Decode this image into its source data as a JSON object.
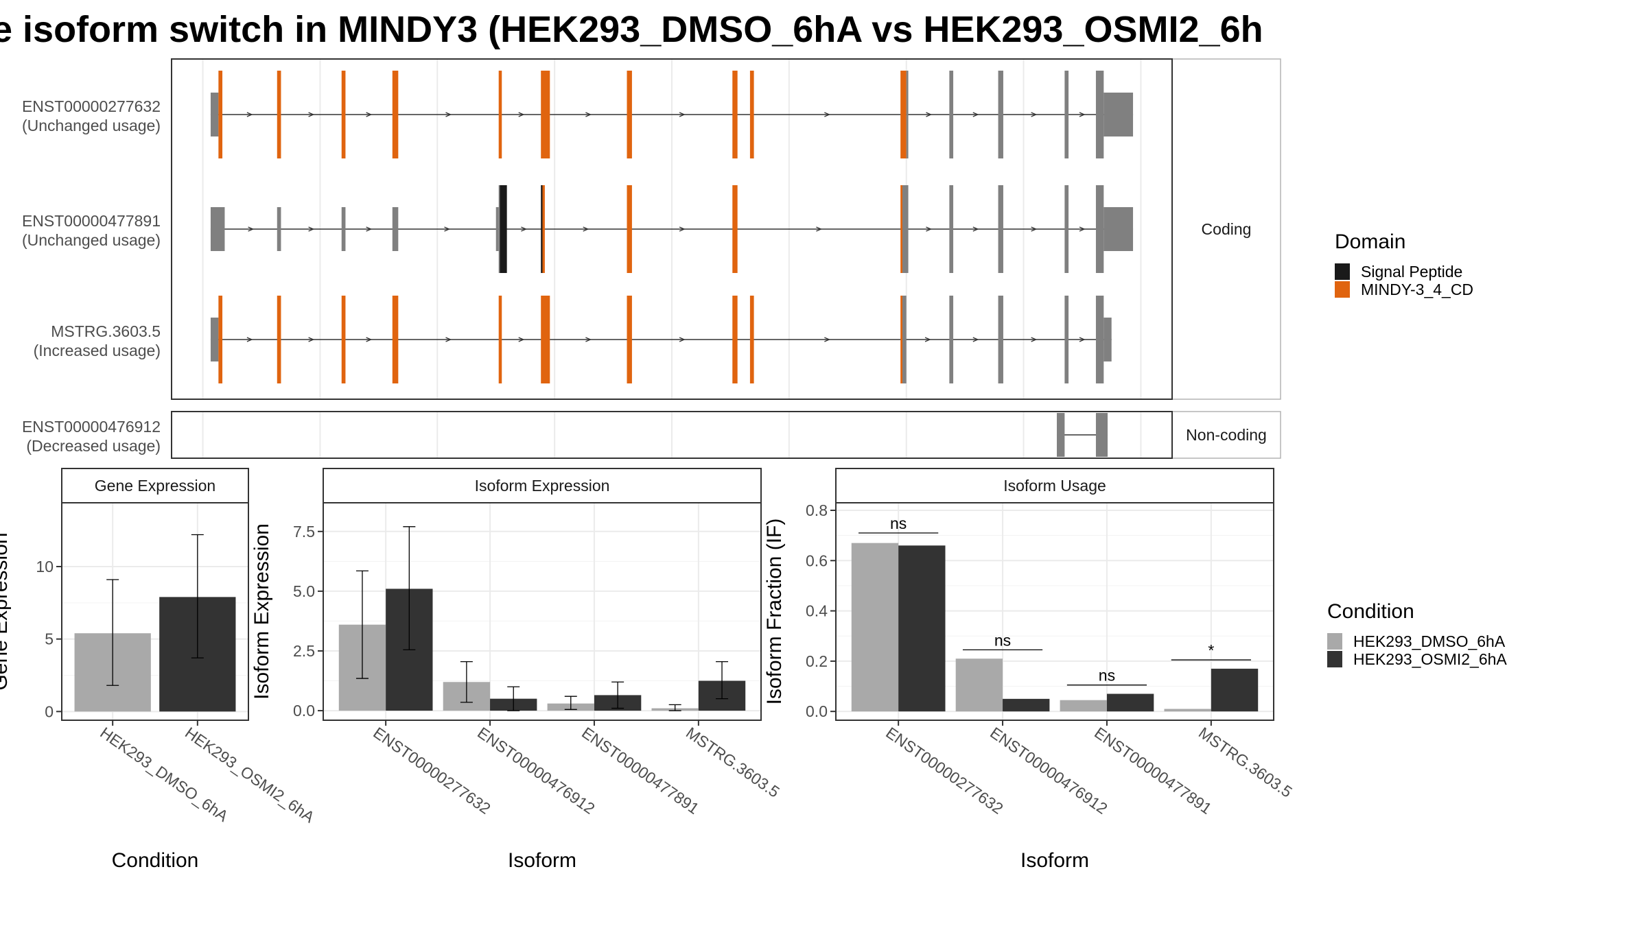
{
  "title": "e isoform switch in MINDY3 (HEK293_DMSO_6hA vs HEK293_OSMI2_6h",
  "colors": {
    "exon": "#808080",
    "domain_core": "#e0640f",
    "signal_peptide": "#1a1a1a",
    "dmso": "#a9a9a9",
    "osmi2": "#333333",
    "panel_border": "#333333",
    "strip_border": "#b3b3b3",
    "grid": "#ebebeb"
  },
  "transcript_plot": {
    "facets": [
      "Coding",
      "Non-coding"
    ],
    "transcripts": [
      {
        "id": "ENST00000277632",
        "label_line1": "ENST00000277632",
        "label_line2": "(Unchanged usage)",
        "facet": "Coding",
        "exons": [
          [
            200,
            400,
            "utr"
          ],
          [
            400,
            500,
            "core"
          ],
          [
            1900,
            2000,
            "core"
          ],
          [
            3550,
            3650,
            "core"
          ],
          [
            4850,
            5000,
            "core"
          ],
          [
            7570,
            7650,
            "core"
          ],
          [
            8650,
            8880,
            "core"
          ],
          [
            10850,
            10980,
            "core"
          ],
          [
            13550,
            13680,
            "core"
          ],
          [
            14000,
            14100,
            "core"
          ],
          [
            17850,
            18000,
            "core"
          ],
          [
            18000,
            18050,
            "cds"
          ],
          [
            19100,
            19200,
            "cds"
          ],
          [
            20350,
            20480,
            "cds"
          ],
          [
            22050,
            22150,
            "cds"
          ],
          [
            22850,
            23050,
            "cds"
          ],
          [
            23050,
            23800,
            "utr"
          ]
        ]
      },
      {
        "id": "ENST00000477891",
        "label_line1": "ENST00000477891",
        "label_line2": "(Unchanged usage)",
        "facet": "Coding",
        "exons": [
          [
            200,
            560,
            "utr"
          ],
          [
            1900,
            2000,
            "utr"
          ],
          [
            3550,
            3650,
            "utr"
          ],
          [
            4850,
            5000,
            "utr"
          ],
          [
            7500,
            7570,
            "utr"
          ],
          [
            7570,
            7600,
            "cds"
          ],
          [
            7600,
            7780,
            "signal"
          ],
          [
            8650,
            8690,
            "signal"
          ],
          [
            8690,
            8750,
            "core"
          ],
          [
            10850,
            10980,
            "core"
          ],
          [
            13550,
            13680,
            "core"
          ],
          [
            17850,
            17900,
            "core"
          ],
          [
            17900,
            18050,
            "cds"
          ],
          [
            19100,
            19200,
            "cds"
          ],
          [
            20350,
            20480,
            "cds"
          ],
          [
            22050,
            22150,
            "cds"
          ],
          [
            22850,
            23050,
            "cds"
          ],
          [
            23050,
            23800,
            "utr"
          ]
        ]
      },
      {
        "id": "MSTRG.3603.5",
        "label_line1": "MSTRG.3603.5",
        "label_line2": "(Increased usage)",
        "facet": "Coding",
        "exons": [
          [
            200,
            400,
            "utr"
          ],
          [
            400,
            500,
            "core"
          ],
          [
            1900,
            2000,
            "core"
          ],
          [
            3550,
            3650,
            "core"
          ],
          [
            4850,
            5000,
            "core"
          ],
          [
            7570,
            7650,
            "core"
          ],
          [
            8650,
            8880,
            "core"
          ],
          [
            10850,
            10980,
            "core"
          ],
          [
            13550,
            13680,
            "core"
          ],
          [
            14000,
            14100,
            "core"
          ],
          [
            17850,
            17900,
            "core"
          ],
          [
            17900,
            18000,
            "cds"
          ],
          [
            19100,
            19200,
            "cds"
          ],
          [
            20350,
            20480,
            "cds"
          ],
          [
            22050,
            22150,
            "cds"
          ],
          [
            22850,
            23050,
            "cds"
          ],
          [
            23050,
            23250,
            "utr"
          ]
        ]
      },
      {
        "id": "ENST00000476912",
        "label_line1": "ENST00000476912",
        "label_line2": "(Decreased usage)",
        "facet": "Non-coding",
        "exons": [
          [
            21850,
            22050,
            "nc"
          ],
          [
            22850,
            23150,
            "nc"
          ]
        ]
      }
    ],
    "x_range": [
      -800,
      24800
    ],
    "x_grid": [
      0,
      3000,
      6000,
      9000,
      12000,
      15000,
      18000,
      21000,
      24000
    ]
  },
  "legend_domain": {
    "title": "Domain",
    "items": [
      {
        "label": "Signal Peptide",
        "color": "#1a1a1a"
      },
      {
        "label": "MINDY-3_4_CD",
        "color": "#e0640f"
      }
    ]
  },
  "legend_condition": {
    "title": "Condition",
    "items": [
      {
        "label": "HEK293_DMSO_6hA",
        "color": "#a9a9a9"
      },
      {
        "label": "HEK293_OSMI2_6hA",
        "color": "#333333"
      }
    ]
  },
  "chart_data": [
    {
      "type": "bar",
      "title": "Gene Expression",
      "xlabel": "Condition",
      "ylabel": "Gene Expression",
      "categories": [
        "HEK293_DMSO_6hA",
        "HEK293_OSMI2_6hA"
      ],
      "values": [
        5.4,
        7.9
      ],
      "error_low": [
        1.8,
        3.7
      ],
      "error_high": [
        9.1,
        12.2
      ],
      "ylim": [
        -0.6,
        14.4
      ],
      "yticks": [
        0,
        5,
        10
      ],
      "ytick_labels": [
        "0",
        "5",
        "10"
      ]
    },
    {
      "type": "bar",
      "title": "Isoform Expression",
      "xlabel": "Isoform",
      "ylabel": "Isoform Expression",
      "categories": [
        "ENST00000277632",
        "ENST00000476912",
        "ENST00000477891",
        "MSTRG.3603.5"
      ],
      "series": [
        {
          "name": "HEK293_DMSO_6hA",
          "values": [
            3.6,
            1.2,
            0.3,
            0.1
          ],
          "error_low": [
            1.35,
            0.35,
            0.05,
            0.0
          ],
          "error_high": [
            5.85,
            2.05,
            0.6,
            0.25
          ]
        },
        {
          "name": "HEK293_OSMI2_6hA",
          "values": [
            5.1,
            0.5,
            0.65,
            1.25
          ],
          "error_low": [
            2.55,
            0.0,
            0.1,
            0.5
          ],
          "error_high": [
            7.7,
            1.0,
            1.2,
            2.05
          ]
        }
      ],
      "ylim": [
        -0.4,
        8.7
      ],
      "yticks": [
        0,
        2.5,
        5,
        7.5
      ],
      "ytick_labels": [
        "0.0",
        "2.5",
        "5.0",
        "7.5"
      ]
    },
    {
      "type": "bar",
      "title": "Isoform Usage",
      "xlabel": "Isoform",
      "ylabel": "Isoform Fraction (IF)",
      "categories": [
        "ENST00000277632",
        "ENST00000476912",
        "ENST00000477891",
        "MSTRG.3603.5"
      ],
      "series": [
        {
          "name": "HEK293_DMSO_6hA",
          "values": [
            0.67,
            0.21,
            0.045,
            0.01
          ]
        },
        {
          "name": "HEK293_OSMI2_6hA",
          "values": [
            0.66,
            0.05,
            0.07,
            0.17
          ]
        }
      ],
      "significance": [
        "ns",
        "ns",
        "ns",
        "*"
      ],
      "significance_level": [
        0.71,
        0.245,
        0.105,
        0.205
      ],
      "ylim": [
        -0.035,
        0.83
      ],
      "yticks": [
        0,
        0.2,
        0.4,
        0.6,
        0.8
      ],
      "ytick_labels": [
        "0.0",
        "0.2",
        "0.4",
        "0.6",
        "0.8"
      ]
    }
  ]
}
